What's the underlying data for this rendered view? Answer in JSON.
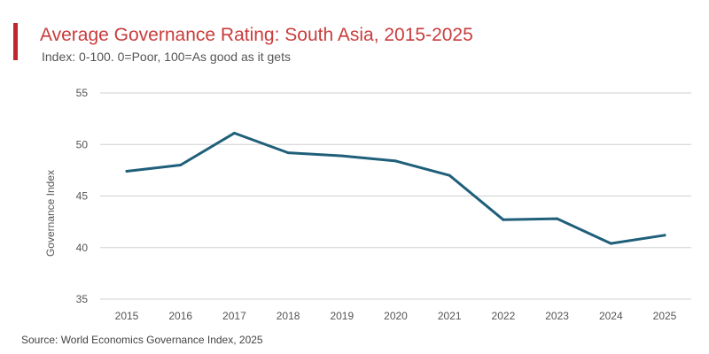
{
  "header": {
    "title": "Average Governance Rating: South Asia, 2015-2025",
    "subtitle": "Index: 0-100. 0=Poor, 100=As good as it gets"
  },
  "footer": {
    "source": "Source: World Economics Governance Index, 2025"
  },
  "colors": {
    "accent": "#c0272d",
    "title": "#c93c3c",
    "line": "#1f5f7a",
    "grid": "#d0d0d0"
  },
  "chart_data": {
    "type": "line",
    "title": "Average Governance Rating: South Asia, 2015-2025",
    "subtitle": "Index: 0-100. 0=Poor, 100=As good as it gets",
    "xlabel": "",
    "ylabel": "Governance Index",
    "ylim": [
      35,
      55
    ],
    "yticks": [
      35,
      40,
      45,
      50,
      55
    ],
    "grid": true,
    "x": [
      "2015",
      "2016",
      "2017",
      "2018",
      "2019",
      "2020",
      "2021",
      "2022",
      "2023",
      "2024",
      "2025"
    ],
    "series": [
      {
        "name": "South Asia",
        "values": [
          47.4,
          48.0,
          51.1,
          49.2,
          48.9,
          48.4,
          47.0,
          42.7,
          42.8,
          40.4,
          41.2
        ]
      }
    ]
  }
}
